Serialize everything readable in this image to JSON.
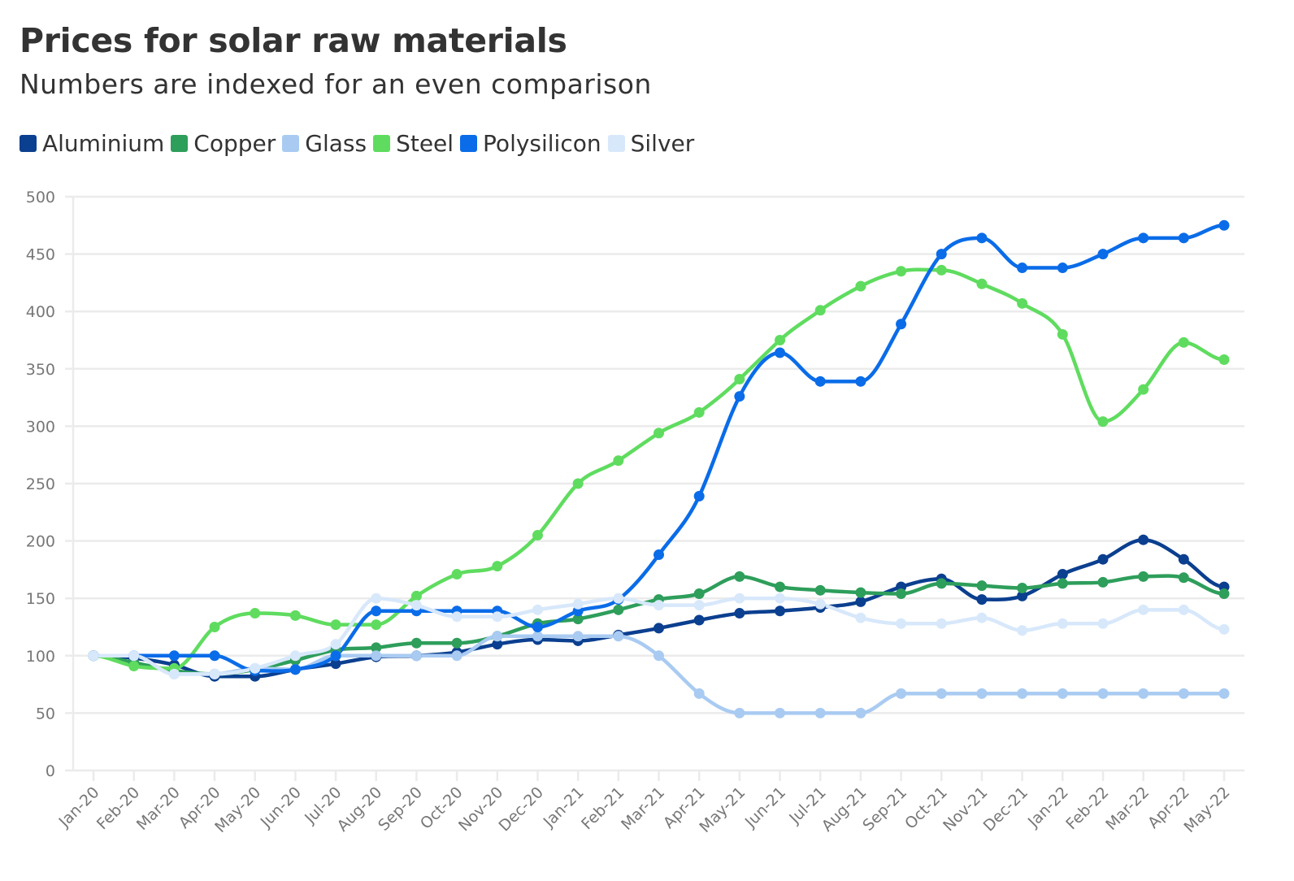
{
  "chart_data": {
    "type": "line",
    "title": "Prices for solar raw materials",
    "subtitle": "Numbers are indexed for an even comparison",
    "xlabel": "",
    "ylabel": "",
    "ylim": [
      0,
      500
    ],
    "yticks": [
      0,
      50,
      100,
      150,
      200,
      250,
      300,
      350,
      400,
      450,
      500
    ],
    "grid": true,
    "legend_position": "top-left",
    "categories": [
      "Jan-20",
      "Feb-20",
      "Mar-20",
      "Apr-20",
      "May-20",
      "Jun-20",
      "Jul-20",
      "Aug-20",
      "Sep-20",
      "Oct-20",
      "Nov-20",
      "Dec-20",
      "Jan-21",
      "Feb-21",
      "Mar-21",
      "Apr-21",
      "May-21",
      "Jun-21",
      "Jul-21",
      "Aug-21",
      "Sep-21",
      "Oct-21",
      "Nov-21",
      "Dec-21",
      "Jan-22",
      "Feb-22",
      "Mar-22",
      "Apr-22",
      "May-22"
    ],
    "series": [
      {
        "name": "Aluminium",
        "color": "#0b3f8f",
        "values": [
          100,
          98,
          92,
          82,
          82,
          88,
          93,
          99,
          100,
          103,
          110,
          114,
          113,
          118,
          124,
          131,
          137,
          139,
          142,
          147,
          160,
          167,
          149,
          152,
          171,
          184,
          201,
          184,
          160
        ]
      },
      {
        "name": "Copper",
        "color": "#2e9e5b",
        "values": [
          100,
          94,
          87,
          84,
          88,
          96,
          105,
          107,
          111,
          111,
          117,
          128,
          132,
          140,
          149,
          154,
          169,
          160,
          157,
          155,
          154,
          163,
          161,
          159,
          163,
          164,
          169,
          168,
          154
        ]
      },
      {
        "name": "Glass",
        "color": "#a9cbf2",
        "values": [
          100,
          100,
          84,
          84,
          89,
          88,
          100,
          100,
          100,
          100,
          117,
          117,
          117,
          117,
          100,
          67,
          50,
          50,
          50,
          50,
          67,
          67,
          67,
          67,
          67,
          67,
          67,
          67,
          67
        ]
      },
      {
        "name": "Steel",
        "color": "#5fdc5f",
        "values": [
          100,
          91,
          89,
          125,
          137,
          135,
          127,
          127,
          152,
          171,
          178,
          205,
          250,
          270,
          294,
          312,
          341,
          375,
          401,
          422,
          435,
          436,
          424,
          407,
          380,
          304,
          332,
          373,
          358
        ]
      },
      {
        "name": "Polysilicon",
        "color": "#0a6ce8",
        "values": [
          100,
          100,
          100,
          100,
          87,
          88,
          100,
          139,
          139,
          139,
          139,
          125,
          139,
          149,
          188,
          239,
          326,
          364,
          339,
          339,
          389,
          450,
          464,
          438,
          438,
          450,
          464,
          464,
          475
        ]
      },
      {
        "name": "Silver",
        "color": "#d8e8fb",
        "values": [
          100,
          100,
          84,
          84,
          89,
          100,
          110,
          150,
          144,
          134,
          134,
          140,
          145,
          150,
          144,
          144,
          150,
          150,
          145,
          133,
          128,
          128,
          133,
          122,
          128,
          128,
          140,
          140,
          123
        ]
      }
    ]
  }
}
